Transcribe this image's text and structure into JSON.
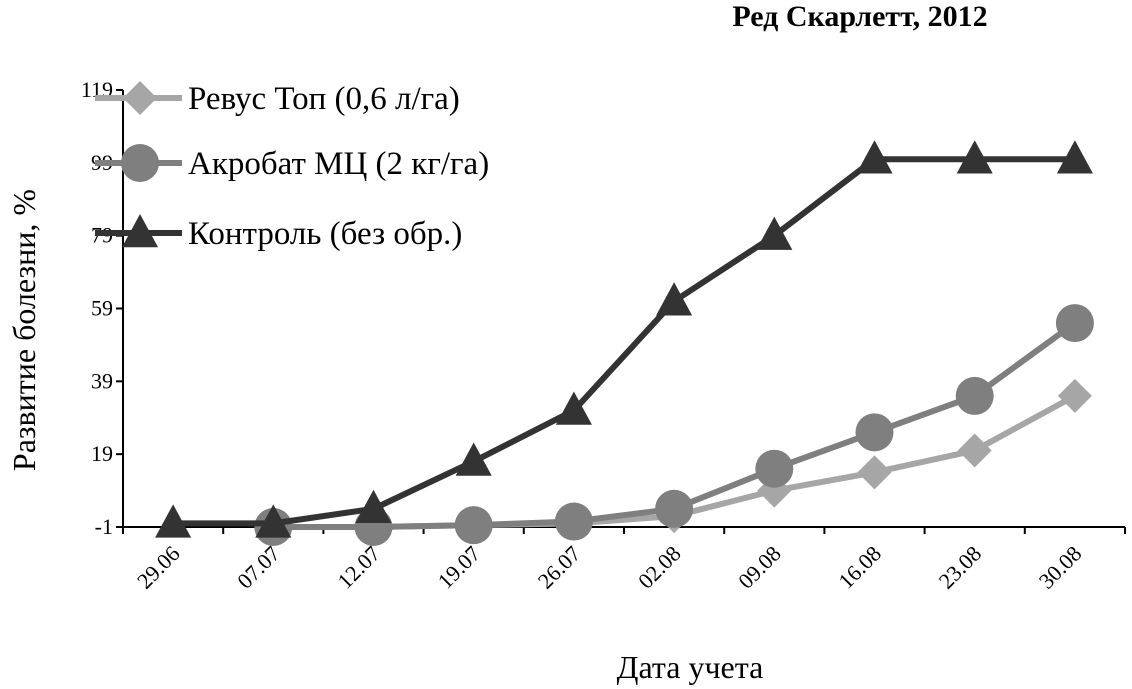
{
  "chart_data": {
    "type": "line",
    "title": "Ред Скарлетт, 2012",
    "xlabel": "Дата учета",
    "ylabel": "Развитие болезни, %",
    "categories": [
      "29.06",
      "07.07",
      "12.07",
      "19.07",
      "26.07",
      "02.08",
      "09.08",
      "16.08",
      "23.08",
      "30.08"
    ],
    "y_ticks": [
      -1,
      19,
      39,
      59,
      79,
      99,
      119
    ],
    "ylim": [
      -1,
      119
    ],
    "grid": false,
    "legend_position": "top-left",
    "series": [
      {
        "name": "Ревус Топ (0,6 л/га)",
        "marker": "diamond",
        "color": "#a6a6a6",
        "x": [
          "07.07",
          "12.07",
          "19.07",
          "26.07",
          "02.08",
          "09.08",
          "16.08",
          "23.08",
          "30.08"
        ],
        "values": [
          -1,
          -1,
          -0.5,
          0,
          2,
          9,
          14,
          20,
          35
        ]
      },
      {
        "name": "Акробат МЦ (2 кг/га)",
        "marker": "circle",
        "color": "#7f7f7f",
        "x": [
          "07.07",
          "12.07",
          "19.07",
          "26.07",
          "02.08",
          "09.08",
          "16.08",
          "23.08",
          "30.08"
        ],
        "values": [
          -1,
          -1,
          -0.5,
          0.5,
          4,
          15,
          25,
          35,
          55
        ]
      },
      {
        "name": "Контроль (без обр.)",
        "marker": "triangle",
        "color": "#333333",
        "x": [
          "29.06",
          "07.07",
          "12.07",
          "19.07",
          "26.07",
          "02.08",
          "09.08",
          "16.08",
          "23.08",
          "30.08"
        ],
        "values": [
          0,
          0,
          4,
          17,
          31,
          61,
          79,
          100,
          100,
          100
        ]
      }
    ]
  }
}
